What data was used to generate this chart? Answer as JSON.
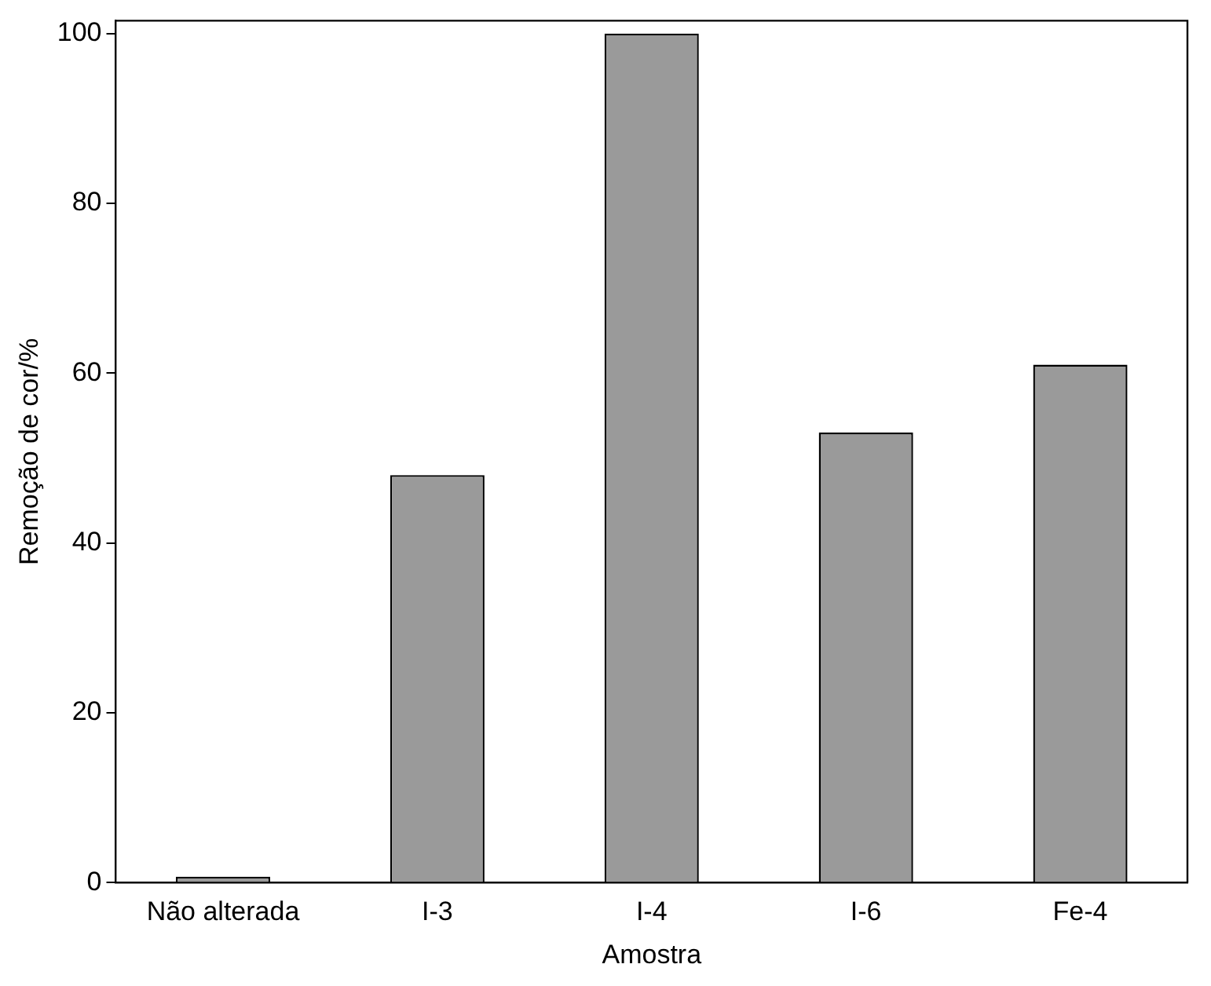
{
  "chart_data": {
    "type": "bar",
    "xlabel": "Amostra",
    "ylabel": "Remoção de cor/%",
    "categories": [
      "Não alterada",
      "I-3",
      "I-4",
      "I-6",
      "Fe-4"
    ],
    "values": [
      0.7,
      48,
      100,
      53,
      61
    ],
    "color": "#9a9a9a",
    "ylim": [
      0,
      101.5
    ],
    "yticks": [
      0,
      20,
      40,
      60,
      80,
      100
    ],
    "grid": false,
    "legend": false
  }
}
